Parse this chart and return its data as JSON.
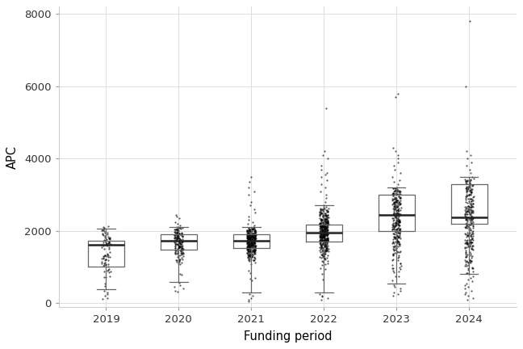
{
  "years": [
    2019,
    2020,
    2021,
    2022,
    2023,
    2024
  ],
  "xlabel": "Funding period",
  "ylabel": "APC",
  "ylim": [
    -100,
    8200
  ],
  "yticks": [
    0,
    2000,
    4000,
    6000,
    8000
  ],
  "background_color": "#ffffff",
  "grid_color": "#dddddd",
  "box_stats": {
    "2019": {
      "q1": 1000,
      "median": 1620,
      "q3": 1720,
      "whislo": 380,
      "whishi": 2050,
      "fliers": [
        2060,
        2080,
        2100,
        2120,
        2000,
        120,
        150,
        200,
        240,
        300,
        350
      ]
    },
    "2020": {
      "q1": 1480,
      "median": 1720,
      "q3": 1900,
      "whislo": 580,
      "whishi": 2100,
      "fliers": [
        2150,
        2200,
        2250,
        2350,
        2400,
        2430,
        560,
        500,
        450,
        400,
        350,
        320
      ]
    },
    "2021": {
      "q1": 1530,
      "median": 1720,
      "q3": 1900,
      "whislo": 300,
      "whishi": 2100,
      "fliers": [
        2150,
        2200,
        2250,
        2300,
        2400,
        2500,
        2600,
        2700,
        2800,
        3000,
        3100,
        3200,
        3350,
        3500,
        250,
        200,
        150,
        100,
        50
      ]
    },
    "2022": {
      "q1": 1700,
      "median": 1950,
      "q3": 2180,
      "whislo": 300,
      "whishi": 2700,
      "fliers": [
        2800,
        2900,
        3000,
        3100,
        3200,
        3300,
        3400,
        3500,
        3550,
        3600,
        3700,
        3800,
        4000,
        4100,
        4200,
        5400,
        250,
        200,
        180,
        150,
        100
      ]
    },
    "2023": {
      "q1": 2000,
      "median": 2430,
      "q3": 3000,
      "whislo": 550,
      "whishi": 3200,
      "fliers": [
        3300,
        3350,
        3400,
        3500,
        3600,
        3700,
        3800,
        3900,
        4000,
        4100,
        4200,
        4300,
        5700,
        5800,
        500,
        450,
        400,
        350,
        300,
        250,
        200
      ]
    },
    "2024": {
      "q1": 2200,
      "median": 2380,
      "q3": 3300,
      "whislo": 800,
      "whishi": 3500,
      "fliers": [
        3600,
        3700,
        3800,
        3900,
        4000,
        4100,
        4200,
        6000,
        7800,
        750,
        700,
        650,
        600,
        550,
        500,
        450,
        400,
        350,
        300,
        250,
        200,
        150,
        100
      ]
    }
  },
  "n_points": {
    "2019": 80,
    "2020": 160,
    "2021": 350,
    "2022": 400,
    "2023": 280,
    "2024": 260
  }
}
